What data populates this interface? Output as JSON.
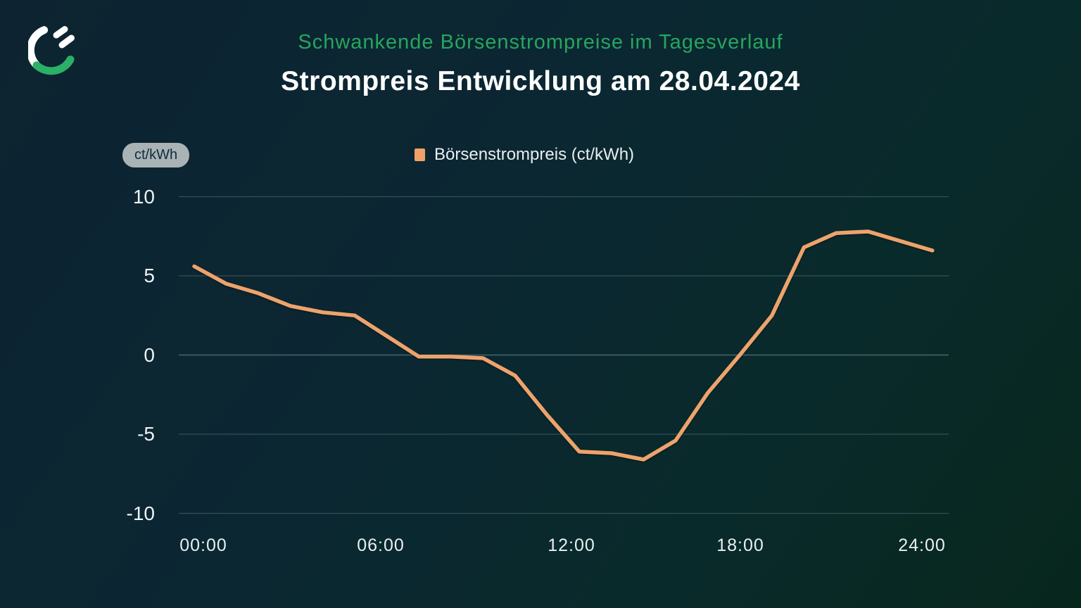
{
  "brand": {
    "logo_icon": "plug-icon",
    "logo_arc_color": "#2bb065",
    "logo_prong_color": "#ffffff"
  },
  "header": {
    "subtitle": "Schwankende Börsenstrompreise im Tagesverlauf",
    "title": "Strompreis Entwicklung am 28.04.2024"
  },
  "chart": {
    "unit_badge": "ct/kWh",
    "legend": {
      "label": "Börsenstrompreis (ct/kWh)",
      "marker_color": "#efa266"
    }
  },
  "chart_data": {
    "type": "line",
    "title": "Strompreis Entwicklung am 28.04.2024",
    "subtitle": "Schwankende Börsenstrompreise im Tagesverlauf",
    "x": [
      "00:00",
      "01:00",
      "02:00",
      "03:00",
      "04:00",
      "05:00",
      "06:00",
      "07:00",
      "08:00",
      "09:00",
      "10:00",
      "11:00",
      "12:00",
      "13:00",
      "14:00",
      "15:00",
      "16:00",
      "17:00",
      "18:00",
      "19:00",
      "20:00",
      "21:00",
      "22:00",
      "23:00"
    ],
    "series": [
      {
        "name": "Börsenstrompreis (ct/kWh)",
        "values": [
          5.6,
          4.5,
          3.9,
          3.1,
          2.7,
          2.5,
          1.2,
          -0.1,
          -0.1,
          -0.2,
          -1.3,
          -3.8,
          -6.1,
          -6.2,
          -6.6,
          -5.4,
          -2.4,
          0.0,
          2.5,
          6.8,
          7.7,
          7.8,
          7.2,
          6.6
        ]
      }
    ],
    "x_axis_tick_labels": [
      "00:00",
      "06:00",
      "12:00",
      "18:00",
      "24:00"
    ],
    "y_ticks": [
      10,
      5,
      0,
      -5,
      -10
    ],
    "ylim": [
      -10,
      10
    ],
    "y_unit": "ct/kWh",
    "line_color": "#eda36c",
    "grid": "horizontal",
    "legend_position": "top-center"
  },
  "colors": {
    "background_start": "#0d2331",
    "background_end": "#07271d",
    "accent_green": "#27a55e",
    "accent_orange": "#eda36c",
    "badge_bg": "#a9b2b5",
    "badge_text": "#0f2e3a",
    "tick_text": "#e8eff1",
    "gridline": "#31515a"
  }
}
